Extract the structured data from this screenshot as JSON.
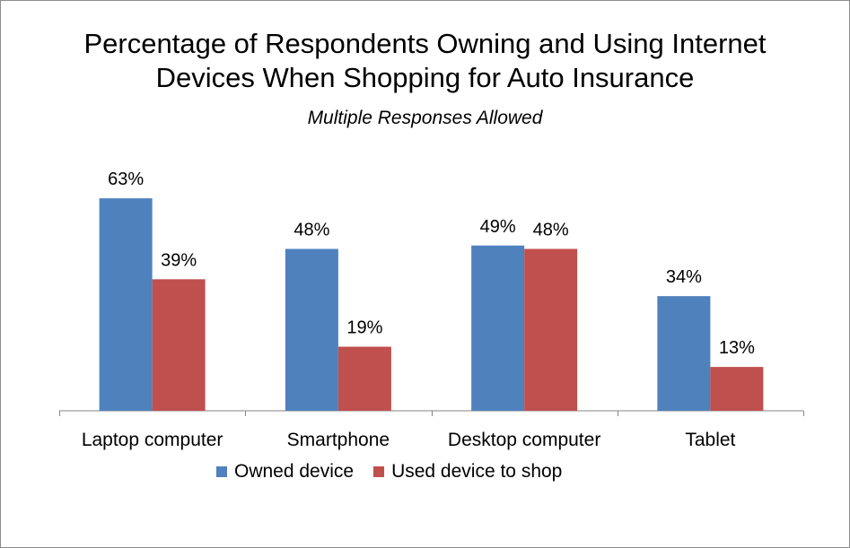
{
  "colors": {
    "owned": "#4f81bd",
    "used": "#c0504d",
    "axis": "#868686",
    "text": "#000000"
  },
  "chart_data": {
    "type": "bar",
    "title_line1": "Percentage of Respondents Owning and Using Internet",
    "title_line2": "Devices When Shopping for Auto Insurance",
    "subtitle": "Multiple Responses Allowed",
    "categories": [
      "Laptop computer",
      "Smartphone",
      "Desktop computer",
      "Tablet"
    ],
    "series": [
      {
        "name": "Owned device",
        "values": [
          63,
          48,
          49,
          34
        ],
        "labels": [
          "63%",
          "48%",
          "49%",
          "34%"
        ]
      },
      {
        "name": "Used device to shop",
        "values": [
          39,
          19,
          48,
          13
        ],
        "labels": [
          "39%",
          "19%",
          "48%",
          "13%"
        ]
      }
    ],
    "ylim": [
      0,
      70
    ],
    "grid": false,
    "legend_position": "bottom"
  }
}
